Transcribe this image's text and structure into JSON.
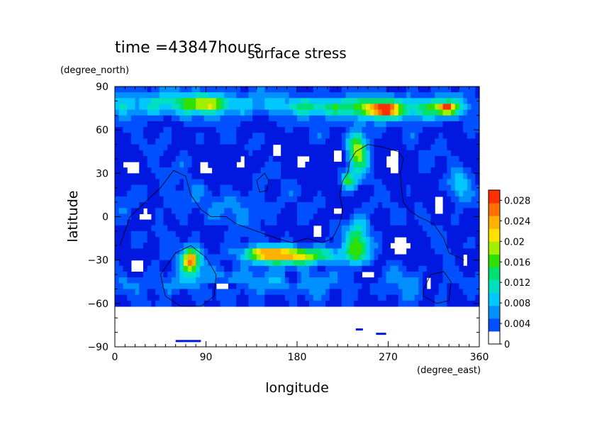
{
  "chart_data": {
    "type": "heatmap",
    "title": "surface stress",
    "time_label": "time =43847hours",
    "xlabel": "longitude",
    "xunit": "(degree_east)",
    "ylabel": "latitude",
    "yunit": "(degree_north)",
    "xlim": [
      0,
      360
    ],
    "ylim": [
      -90,
      90
    ],
    "xticks": [
      "0",
      "90",
      "180",
      "270",
      "360"
    ],
    "yticks": [
      "90",
      "60",
      "30",
      "0",
      "−30",
      "−60",
      "−90"
    ],
    "colorbar": {
      "min": 0,
      "max": 0.03,
      "ticks": [
        "0",
        "0.004",
        "0.008",
        "0.012",
        "0.016",
        "0.02",
        "0.024",
        "0.028"
      ],
      "colors": [
        "#ffffff",
        "#0018e0",
        "#0050ff",
        "#0090ff",
        "#00c8ff",
        "#00e0c0",
        "#00e070",
        "#30e000",
        "#a0f000",
        "#ffe000",
        "#ffb000",
        "#ff7000",
        "#ff3000"
      ]
    },
    "field": {
      "background": 0.0045,
      "noise_amplitude": 0.0016,
      "blobs": [
        {
          "lon": 60,
          "lat": 78,
          "slon": 110,
          "slat": 9,
          "value": 0.009
        },
        {
          "lon": 90,
          "lat": 78,
          "slon": 22,
          "slat": 5,
          "value": 0.01
        },
        {
          "lon": 260,
          "lat": 75,
          "slon": 55,
          "slat": 8,
          "value": 0.014
        },
        {
          "lon": 265,
          "lat": 74,
          "slon": 12,
          "slat": 4,
          "value": 0.018
        },
        {
          "lon": 325,
          "lat": 75,
          "slon": 22,
          "slat": 7,
          "value": 0.012
        },
        {
          "lon": 327,
          "lat": 75,
          "slon": 7,
          "slat": 3,
          "value": 0.016
        },
        {
          "lon": 195,
          "lat": 76,
          "slon": 35,
          "slat": 5,
          "value": 0.006
        },
        {
          "lon": 240,
          "lat": 45,
          "slon": 10,
          "slat": 14,
          "value": 0.018
        },
        {
          "lon": 230,
          "lat": 25,
          "slon": 7,
          "slat": 6,
          "value": 0.012
        },
        {
          "lon": 340,
          "lat": 20,
          "slon": 10,
          "slat": 10,
          "value": 0.008
        },
        {
          "lon": 130,
          "lat": 5,
          "slon": 30,
          "slat": 12,
          "value": 0.003
        },
        {
          "lon": 75,
          "lat": -30,
          "slon": 9,
          "slat": 8,
          "value": 0.024
        },
        {
          "lon": 175,
          "lat": -27,
          "slon": 45,
          "slat": 6,
          "value": 0.02
        },
        {
          "lon": 150,
          "lat": -25,
          "slon": 20,
          "slat": 4,
          "value": 0.01
        },
        {
          "lon": 240,
          "lat": -18,
          "slon": 12,
          "slat": 16,
          "value": 0.014
        },
        {
          "lon": 120,
          "lat": -45,
          "slon": 120,
          "slat": 8,
          "value": 0.006
        },
        {
          "lon": 300,
          "lat": -45,
          "slon": 30,
          "slat": 10,
          "value": 0.004
        },
        {
          "lon": 60,
          "lat": 10,
          "slon": 50,
          "slat": 18,
          "value": 0.002
        }
      ],
      "holes": [
        {
          "lon": 15,
          "lat": 35,
          "slon": 14,
          "slat": 10
        },
        {
          "lon": 90,
          "lat": 32,
          "slon": 12,
          "slat": 8
        },
        {
          "lon": 125,
          "lat": 38,
          "slon": 10,
          "slat": 8
        },
        {
          "lon": 185,
          "lat": 38,
          "slon": 12,
          "slat": 8
        },
        {
          "lon": 220,
          "lat": 42,
          "slon": 10,
          "slat": 8
        },
        {
          "lon": 275,
          "lat": 38,
          "slon": 12,
          "slat": 16
        },
        {
          "lon": 320,
          "lat": 10,
          "slon": 10,
          "slat": 10
        },
        {
          "lon": 30,
          "lat": 0,
          "slon": 12,
          "slat": 10
        },
        {
          "lon": 285,
          "lat": -20,
          "slon": 14,
          "slat": 10
        },
        {
          "lon": 20,
          "lat": -35,
          "slon": 12,
          "slat": 10
        },
        {
          "lon": 200,
          "lat": -10,
          "slon": 10,
          "slat": 8
        },
        {
          "lon": 105,
          "lat": -48,
          "slon": 20,
          "slat": 5
        },
        {
          "lon": 345,
          "lat": -30,
          "slon": 10,
          "slat": 7
        },
        {
          "lon": 310,
          "lat": -45,
          "slon": 10,
          "slat": 10
        },
        {
          "lon": 250,
          "lat": -40,
          "slon": 14,
          "slat": 8
        },
        {
          "lon": 175,
          "lat": -42,
          "slon": 8,
          "slat": 6
        },
        {
          "lon": 220,
          "lat": 5,
          "slon": 8,
          "slat": 6
        },
        {
          "lon": 160,
          "lat": 45,
          "slon": 6,
          "slat": 6
        }
      ],
      "empty_south_of": -62,
      "streaks": [
        {
          "lon": [
            60,
            85
          ],
          "lat": -86
        },
        {
          "lon": [
            238,
            245
          ],
          "lat": -78
        },
        {
          "lon": [
            258,
            268
          ],
          "lat": -81
        }
      ]
    },
    "outlines": [
      [
        [
          5,
          -20
        ],
        [
          15,
          0
        ],
        [
          30,
          10
        ],
        [
          45,
          20
        ],
        [
          58,
          32
        ],
        [
          70,
          28
        ],
        [
          75,
          15
        ],
        [
          85,
          5
        ],
        [
          95,
          0
        ],
        [
          110,
          0
        ],
        [
          120,
          -5
        ],
        [
          140,
          -10
        ],
        [
          160,
          -15
        ],
        [
          175,
          -18
        ],
        [
          190,
          -15
        ],
        [
          205,
          -18
        ],
        [
          215,
          -15
        ],
        [
          222,
          -5
        ],
        [
          225,
          5
        ],
        [
          222,
          15
        ],
        [
          225,
          25
        ],
        [
          230,
          30
        ],
        [
          232,
          38
        ],
        [
          238,
          45
        ],
        [
          250,
          50
        ],
        [
          265,
          48
        ],
        [
          280,
          45
        ],
        [
          285,
          40
        ],
        [
          282,
          30
        ],
        [
          283,
          20
        ],
        [
          285,
          10
        ],
        [
          290,
          5
        ],
        [
          300,
          0
        ],
        [
          315,
          -5
        ],
        [
          325,
          -15
        ],
        [
          330,
          -25
        ],
        [
          345,
          -30
        ]
      ],
      [
        [
          45,
          -40
        ],
        [
          60,
          -25
        ],
        [
          75,
          -20
        ],
        [
          90,
          -28
        ],
        [
          100,
          -40
        ],
        [
          98,
          -55
        ],
        [
          85,
          -62
        ],
        [
          65,
          -62
        ],
        [
          50,
          -55
        ],
        [
          45,
          -40
        ]
      ],
      [
        [
          305,
          -50
        ],
        [
          312,
          -40
        ],
        [
          325,
          -38
        ],
        [
          332,
          -45
        ],
        [
          330,
          -58
        ],
        [
          318,
          -60
        ],
        [
          305,
          -55
        ],
        [
          305,
          -50
        ]
      ],
      [
        [
          140,
          25
        ],
        [
          148,
          30
        ],
        [
          152,
          25
        ],
        [
          150,
          18
        ],
        [
          143,
          17
        ],
        [
          140,
          25
        ]
      ]
    ]
  }
}
